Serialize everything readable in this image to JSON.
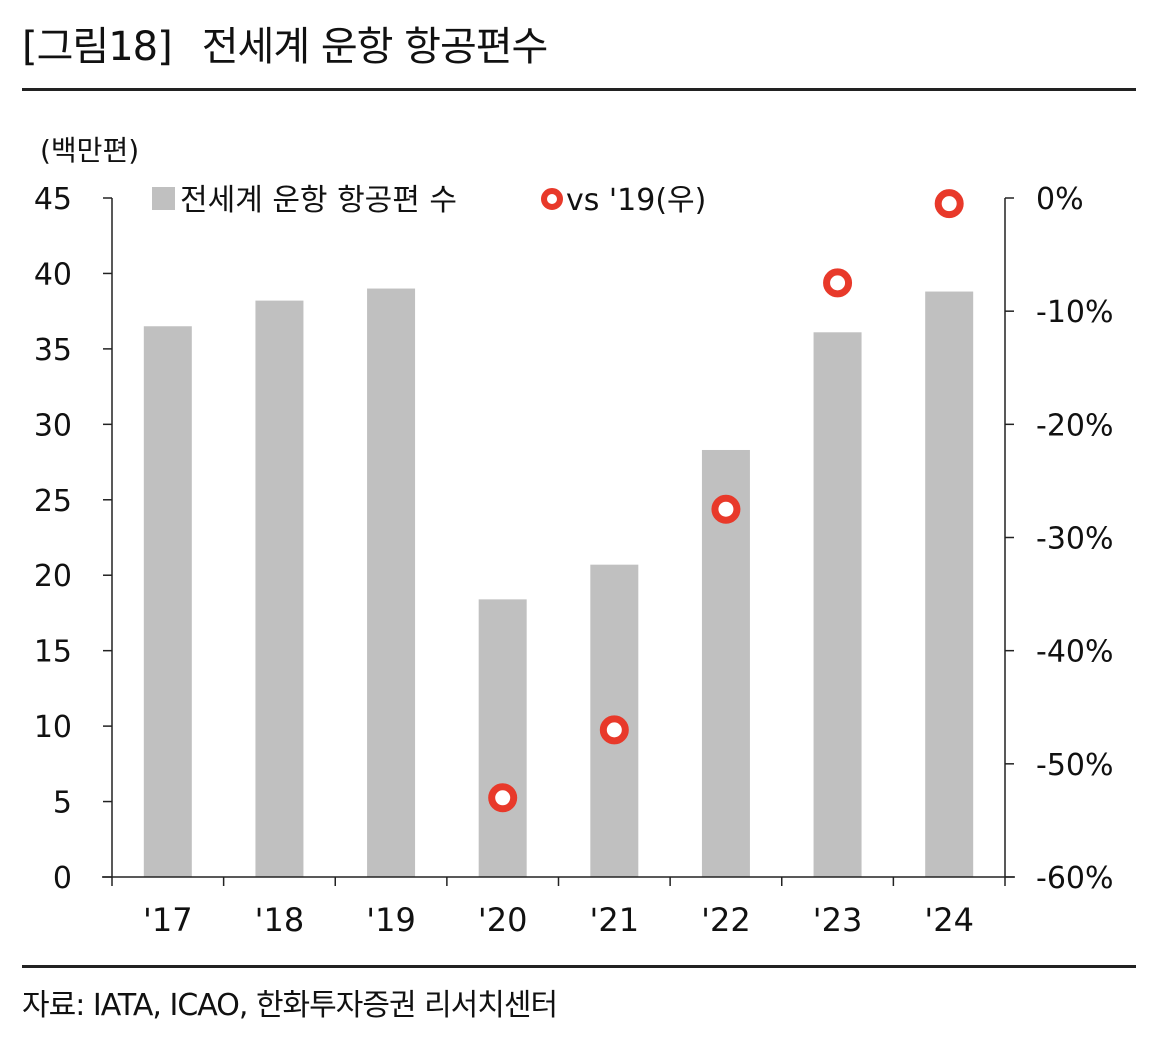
{
  "figure": {
    "label": "[그림18]",
    "title": "전세계 운항 항공편수",
    "source": "자료: IATA, ICAO, 한화투자증권 리서치센터"
  },
  "colors": {
    "bar": "#c0c0c0",
    "marker": "#e8392a",
    "axis": "#222222",
    "rule": "#222222"
  },
  "chart_data": {
    "type": "bar",
    "categories": [
      "'17",
      "'18",
      "'19",
      "'20",
      "'21",
      "'22",
      "'23",
      "'24"
    ],
    "unit_label": "(백만편)",
    "series": [
      {
        "name": "전세계 운항 항공편 수",
        "type": "bar",
        "axis": "left",
        "values": [
          36.5,
          38.2,
          39.0,
          18.4,
          20.7,
          28.3,
          36.1,
          38.8
        ]
      },
      {
        "name": "vs '19(우)",
        "type": "scatter",
        "axis": "right",
        "values": [
          null,
          null,
          null,
          -53,
          -47,
          -27.5,
          -7.5,
          -0.5
        ]
      }
    ],
    "y_left": {
      "min": 0,
      "max": 45,
      "ticks": [
        "0",
        "5",
        "10",
        "15",
        "20",
        "25",
        "30",
        "35",
        "40",
        "45"
      ]
    },
    "y_right": {
      "min": -60,
      "max": 0,
      "ticks": [
        "-60%",
        "-50%",
        "-40%",
        "-30%",
        "-20%",
        "-10%",
        "0%"
      ]
    },
    "grid": false,
    "legend_position": "top"
  }
}
